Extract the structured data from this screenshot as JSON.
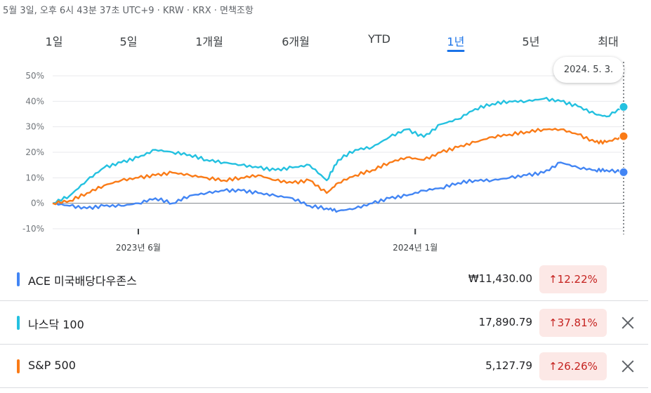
{
  "header": {
    "meta": "5월 3일, 오후 6시 43분 37초 UTC+9 · KRW · KRX · 면책조항"
  },
  "tabs": [
    {
      "label": "1일"
    },
    {
      "label": "5일"
    },
    {
      "label": "1개월"
    },
    {
      "label": "6개월"
    },
    {
      "label": "YTD"
    },
    {
      "label": "1년",
      "active": true
    },
    {
      "label": "5년"
    },
    {
      "label": "최대"
    }
  ],
  "tooltip": {
    "date": "2024. 5. 3."
  },
  "chart_data": {
    "type": "line",
    "y_tick_labels": [
      "50%",
      "40%",
      "30%",
      "20%",
      "10%",
      "0%",
      "-10%"
    ],
    "y_ticks": [
      50,
      40,
      30,
      20,
      10,
      0,
      -10
    ],
    "ylim": [
      -10,
      50
    ],
    "x_tick_labels": [
      "2023년 6월",
      "2024년 1월"
    ],
    "x_ticks": [
      0.15,
      0.635
    ],
    "grid": true,
    "series": [
      {
        "name": "ACE 미국배당다우존스",
        "color": "#4285f4",
        "x": [
          0,
          0.03,
          0.06,
          0.09,
          0.12,
          0.15,
          0.18,
          0.21,
          0.24,
          0.27,
          0.3,
          0.33,
          0.36,
          0.39,
          0.42,
          0.45,
          0.48,
          0.5,
          0.53,
          0.56,
          0.59,
          0.62,
          0.65,
          0.68,
          0.71,
          0.74,
          0.77,
          0.8,
          0.83,
          0.86,
          0.89,
          0.92,
          0.95,
          0.97,
          1.0
        ],
        "values": [
          0,
          -1,
          -2,
          -1,
          -1,
          0,
          2,
          0,
          3,
          4,
          5,
          5,
          4,
          3,
          2,
          -1,
          -2,
          -3,
          -2,
          0,
          2,
          3,
          5,
          6,
          8,
          9,
          9,
          10,
          11,
          12,
          16,
          14,
          13,
          13,
          12.2
        ]
      },
      {
        "name": "나스닥 100",
        "color": "#24c1e0",
        "x": [
          0,
          0.03,
          0.06,
          0.09,
          0.12,
          0.15,
          0.18,
          0.21,
          0.24,
          0.27,
          0.3,
          0.33,
          0.36,
          0.39,
          0.42,
          0.45,
          0.48,
          0.5,
          0.53,
          0.56,
          0.59,
          0.62,
          0.65,
          0.68,
          0.71,
          0.74,
          0.77,
          0.8,
          0.83,
          0.86,
          0.89,
          0.92,
          0.95,
          0.97,
          1.0
        ],
        "values": [
          0,
          3,
          9,
          14,
          16,
          18,
          21,
          20,
          19,
          17,
          16,
          15,
          14,
          13,
          14,
          15,
          9,
          17,
          21,
          22,
          26,
          29,
          26,
          31,
          33,
          37,
          39,
          40,
          40,
          41,
          40,
          38,
          35,
          34,
          37.8
        ]
      },
      {
        "name": "S&P 500",
        "color": "#fa7b17",
        "x": [
          0,
          0.03,
          0.06,
          0.09,
          0.12,
          0.15,
          0.18,
          0.21,
          0.24,
          0.27,
          0.3,
          0.33,
          0.36,
          0.39,
          0.42,
          0.45,
          0.48,
          0.5,
          0.53,
          0.56,
          0.59,
          0.62,
          0.65,
          0.68,
          0.71,
          0.74,
          0.77,
          0.8,
          0.83,
          0.86,
          0.89,
          0.92,
          0.95,
          0.97,
          1.0
        ],
        "values": [
          0,
          1,
          4,
          7,
          9,
          10,
          11,
          12,
          11,
          10,
          9,
          10,
          11,
          9,
          8,
          9,
          4,
          8,
          11,
          13,
          16,
          18,
          17,
          20,
          22,
          24,
          26,
          27,
          28,
          29,
          29,
          27,
          24,
          24,
          26.3
        ]
      }
    ]
  },
  "rows": [
    {
      "name": "ACE 미국배당다우존스",
      "color": "#4285f4",
      "price": "₩11,430.00",
      "change": "↑12.22%"
    },
    {
      "name": "나스닥 100",
      "color": "#24c1e0",
      "price": "17,890.79",
      "change": "↑37.81%"
    },
    {
      "name": "S&P 500",
      "color": "#fa7b17",
      "price": "5,127.79",
      "change": "↑26.26%"
    }
  ]
}
